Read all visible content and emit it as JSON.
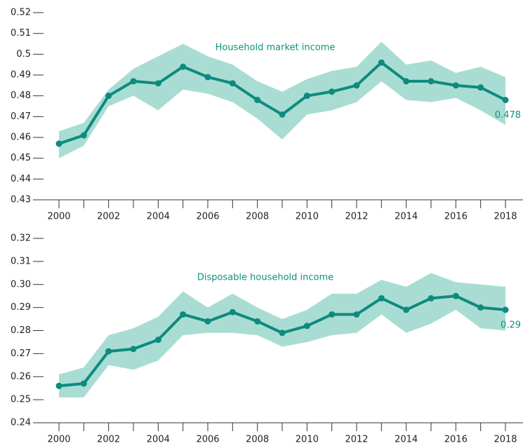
{
  "chart_data": [
    {
      "type": "line",
      "title": "Household market income",
      "x": [
        2000,
        2001,
        2002,
        2003,
        2004,
        2005,
        2006,
        2007,
        2008,
        2009,
        2010,
        2011,
        2012,
        2013,
        2014,
        2015,
        2016,
        2017,
        2018
      ],
      "series": [
        {
          "color": "#0e8a7e",
          "band_color": "#a9ddd4",
          "values": [
            0.457,
            0.461,
            0.48,
            0.487,
            0.486,
            0.494,
            0.489,
            0.486,
            0.478,
            0.471,
            0.48,
            0.482,
            0.485,
            0.496,
            0.487,
            0.487,
            0.485,
            0.484,
            0.478
          ],
          "upper": [
            0.463,
            0.467,
            0.483,
            0.493,
            0.499,
            0.505,
            0.499,
            0.495,
            0.487,
            0.482,
            0.488,
            0.492,
            0.494,
            0.506,
            0.495,
            0.497,
            0.491,
            0.494,
            0.489
          ],
          "lower": [
            0.45,
            0.456,
            0.475,
            0.48,
            0.473,
            0.483,
            0.481,
            0.477,
            0.469,
            0.459,
            0.471,
            0.473,
            0.477,
            0.487,
            0.478,
            0.477,
            0.479,
            0.473,
            0.466
          ],
          "end_label": "0.478"
        }
      ],
      "xlim": [
        1999,
        2019
      ],
      "xticks": [
        2000,
        2002,
        2004,
        2006,
        2008,
        2010,
        2012,
        2014,
        2016,
        2018
      ],
      "ylim": [
        0.43,
        0.52
      ],
      "yticks": [
        0.43,
        0.44,
        0.45,
        0.46,
        0.47,
        0.48,
        0.49,
        0.5,
        0.51,
        0.52
      ]
    },
    {
      "type": "line",
      "title": "Disposable household income",
      "x": [
        2000,
        2001,
        2002,
        2003,
        2004,
        2005,
        2006,
        2007,
        2008,
        2009,
        2010,
        2011,
        2012,
        2013,
        2014,
        2015,
        2016,
        2017,
        2018
      ],
      "series": [
        {
          "color": "#0e8a7e",
          "band_color": "#a9ddd4",
          "values": [
            0.256,
            0.257,
            0.271,
            0.272,
            0.276,
            0.287,
            0.284,
            0.288,
            0.284,
            0.279,
            0.282,
            0.287,
            0.287,
            0.294,
            0.289,
            0.294,
            0.295,
            0.29,
            0.289
          ],
          "upper": [
            0.261,
            0.264,
            0.278,
            0.281,
            0.286,
            0.297,
            0.29,
            0.296,
            0.29,
            0.285,
            0.289,
            0.296,
            0.296,
            0.302,
            0.299,
            0.305,
            0.301,
            0.3,
            0.299
          ],
          "lower": [
            0.251,
            0.251,
            0.265,
            0.263,
            0.267,
            0.278,
            0.279,
            0.279,
            0.278,
            0.273,
            0.275,
            0.278,
            0.279,
            0.287,
            0.279,
            0.283,
            0.289,
            0.281,
            0.28
          ],
          "end_label": "0.29"
        }
      ],
      "xlim": [
        1999,
        2019
      ],
      "xticks": [
        2000,
        2002,
        2004,
        2006,
        2008,
        2010,
        2012,
        2014,
        2016,
        2018
      ],
      "ylim": [
        0.24,
        0.32
      ],
      "yticks": [
        0.24,
        0.25,
        0.26,
        0.27,
        0.28,
        0.29,
        {
          "value": 0.3,
          "label": "0.30"
        },
        0.31,
        0.32
      ]
    }
  ]
}
